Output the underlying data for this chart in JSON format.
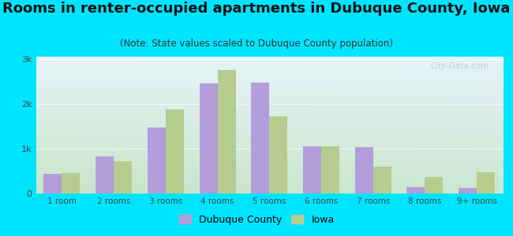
{
  "title": "Rooms in renter-occupied apartments in Dubuque County, Iowa",
  "subtitle": "(Note: State values scaled to Dubuque County population)",
  "categories": [
    "1 room",
    "2 rooms",
    "3 rooms",
    "4 rooms",
    "5 rooms",
    "6 rooms",
    "7 rooms",
    "8 rooms",
    "9+ rooms"
  ],
  "dubuque_values": [
    430,
    830,
    1480,
    2450,
    2480,
    1060,
    1030,
    145,
    120
  ],
  "iowa_values": [
    450,
    710,
    1880,
    2750,
    1720,
    1060,
    600,
    370,
    470
  ],
  "dubuque_color": "#b39ddb",
  "iowa_color": "#b5cc8e",
  "background_outer": "#00e5ff",
  "ytick_labels": [
    "0",
    "1k",
    "2k",
    "3k"
  ],
  "ytick_values": [
    0,
    1000,
    2000,
    3000
  ],
  "ylim": [
    0,
    3050
  ],
  "bar_width": 0.35,
  "legend_labels": [
    "Dubuque County",
    "Iowa"
  ],
  "watermark": "City-Data.com",
  "title_fontsize": 13,
  "subtitle_fontsize": 8.5
}
